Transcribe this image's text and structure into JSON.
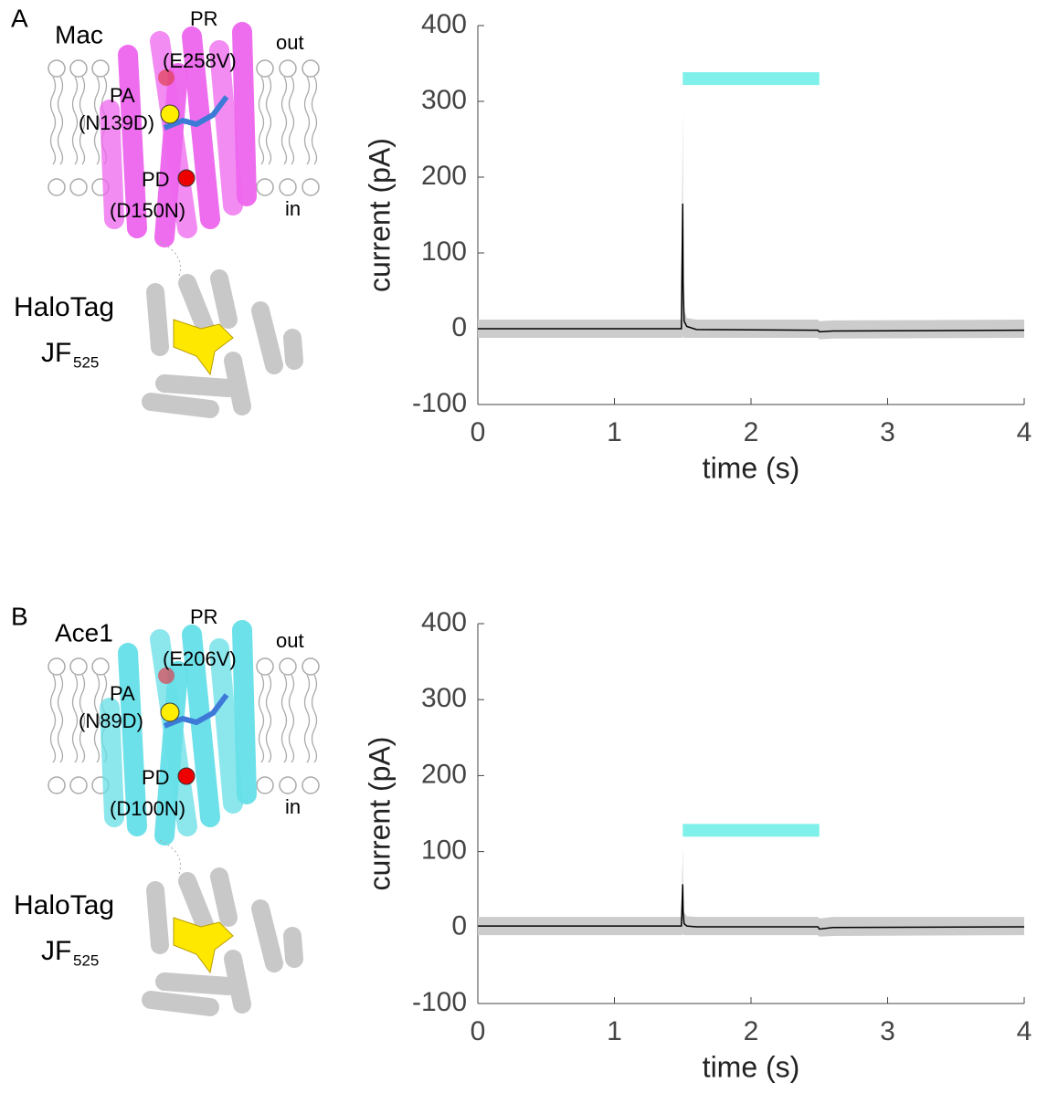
{
  "panels": [
    {
      "letter": "A",
      "protein": "Mac",
      "pr": "PR",
      "pr_mut": "(E258V)",
      "out": "out",
      "pa": "PA",
      "pa_mut": "(N139D)",
      "pd": "PD",
      "pd_mut": "(D150N)",
      "in": "in",
      "tag": "HaloTag",
      "dye": "JF",
      "dye_sub": "525",
      "color": "#ee66ee"
    },
    {
      "letter": "B",
      "protein": "Ace1",
      "pr": "PR",
      "pr_mut": "(E206V)",
      "out": "out",
      "pa": "PA",
      "pa_mut": "(N89D)",
      "pd": "PD",
      "pd_mut": "(D100N)",
      "in": "in",
      "tag": "HaloTag",
      "dye": "JF",
      "dye_sub": "525",
      "color": "#66e0e8"
    }
  ],
  "chart_data": [
    {
      "type": "line",
      "xlabel": "time (s)",
      "ylabel": "current (pA)",
      "x": [
        0,
        1.49,
        1.5,
        1.503,
        1.51,
        1.53,
        1.6,
        2.49,
        2.5,
        2.6,
        4
      ],
      "band_high": [
        12,
        12,
        290,
        100,
        25,
        14,
        12,
        12,
        10,
        11,
        12
      ],
      "band_low": [
        -12,
        -12,
        -12,
        -10,
        -12,
        -12,
        -12,
        -12,
        -14,
        -13,
        -12
      ],
      "band_color": "#cccccc",
      "series": [
        {
          "color": "#000000",
          "values": [
            0,
            0,
            165,
            60,
            10,
            3,
            -1,
            -2,
            -4,
            -3,
            -2
          ]
        }
      ],
      "stimulus": {
        "x": [
          1.5,
          2.5
        ],
        "y": 330,
        "color": "#80f0ea"
      },
      "xlim": [
        0,
        4
      ],
      "xticks": [
        0,
        1,
        2,
        3,
        4
      ],
      "ylim": [
        -100,
        400
      ],
      "yticks": [
        -100,
        0,
        100,
        200,
        300,
        400
      ]
    },
    {
      "type": "line",
      "xlabel": "time (s)",
      "ylabel": "current (pA)",
      "x": [
        0,
        1.49,
        1.5,
        1.503,
        1.51,
        1.53,
        1.6,
        2.49,
        2.5,
        2.6,
        4
      ],
      "band_high": [
        14,
        14,
        105,
        40,
        20,
        15,
        14,
        14,
        12,
        14,
        14
      ],
      "band_low": [
        -10,
        -10,
        -10,
        -8,
        -10,
        -10,
        -10,
        -10,
        -12,
        -11,
        -10
      ],
      "band_color": "#cccccc",
      "series": [
        {
          "color": "#000000",
          "values": [
            2,
            2,
            57,
            20,
            5,
            2,
            1,
            1,
            -2,
            0,
            1
          ]
        }
      ],
      "stimulus": {
        "x": [
          1.5,
          2.5
        ],
        "y": 128,
        "color": "#80f0ea"
      },
      "xlim": [
        0,
        4
      ],
      "xticks": [
        0,
        1,
        2,
        3,
        4
      ],
      "ylim": [
        -100,
        400
      ],
      "yticks": [
        -100,
        0,
        100,
        200,
        300,
        400
      ]
    }
  ]
}
